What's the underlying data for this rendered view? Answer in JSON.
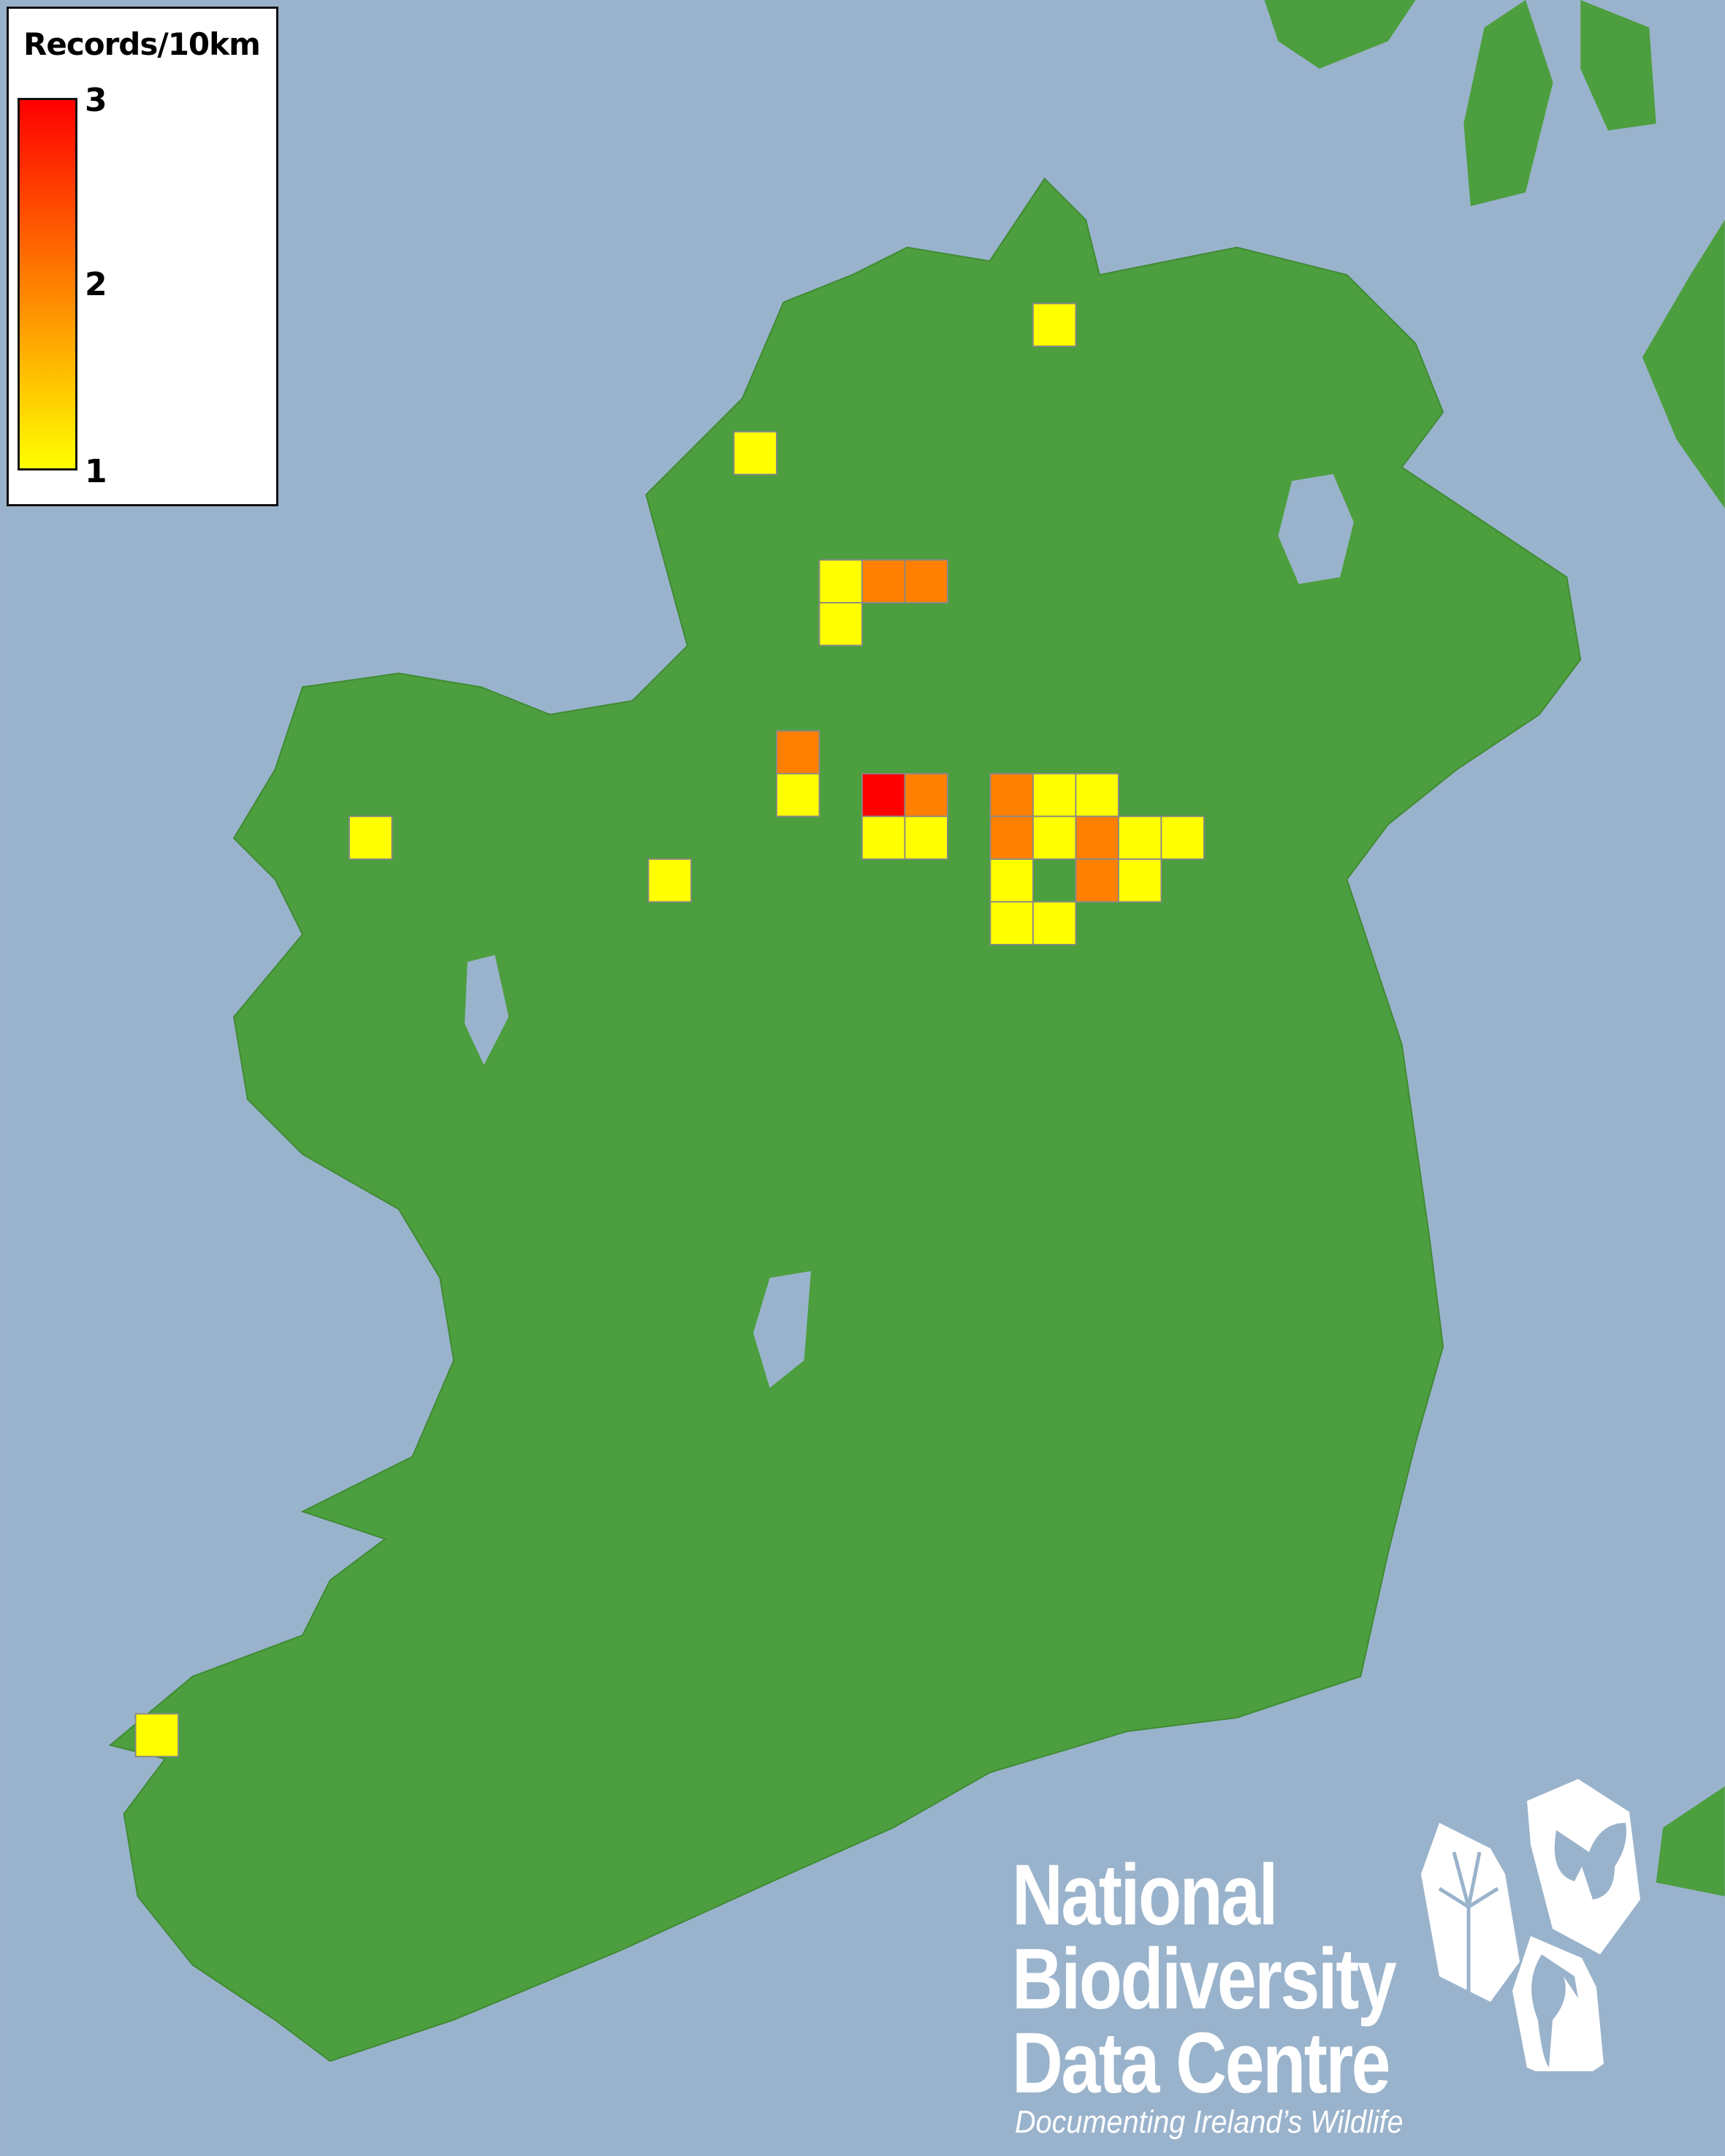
{
  "legend": {
    "title": "Records/10km",
    "ticks": [
      "3",
      "2",
      "1"
    ],
    "min": 1,
    "max": 3,
    "color_min": "#ffff00",
    "color_mid": "#ff8000",
    "color_max": "#ff0000"
  },
  "colors": {
    "sea": "#9ab3cc",
    "land": "#4c9e3e",
    "grid_outline": "#888888"
  },
  "records": [
    {
      "col": 6,
      "row": -6,
      "value": 1
    },
    {
      "col": -1,
      "row": -3,
      "value": 1
    },
    {
      "col": 1,
      "row": 0,
      "value": 1
    },
    {
      "col": 2,
      "row": 0,
      "value": 2
    },
    {
      "col": 3,
      "row": 0,
      "value": 2
    },
    {
      "col": 1,
      "row": 1,
      "value": 1
    },
    {
      "col": 0,
      "row": 4,
      "value": 2
    },
    {
      "col": 0,
      "row": 5,
      "value": 1
    },
    {
      "col": 2,
      "row": 5,
      "value": 3
    },
    {
      "col": 3,
      "row": 5,
      "value": 2
    },
    {
      "col": 2,
      "row": 6,
      "value": 1
    },
    {
      "col": 3,
      "row": 6,
      "value": 1
    },
    {
      "col": 5,
      "row": 5,
      "value": 2
    },
    {
      "col": 6,
      "row": 5,
      "value": 1
    },
    {
      "col": 7,
      "row": 5,
      "value": 1
    },
    {
      "col": 5,
      "row": 6,
      "value": 2
    },
    {
      "col": 6,
      "row": 6,
      "value": 1
    },
    {
      "col": 7,
      "row": 6,
      "value": 2
    },
    {
      "col": 8,
      "row": 6,
      "value": 1
    },
    {
      "col": 9,
      "row": 6,
      "value": 1
    },
    {
      "col": 5,
      "row": 7,
      "value": 1
    },
    {
      "col": 7,
      "row": 7,
      "value": 2
    },
    {
      "col": 8,
      "row": 7,
      "value": 1
    },
    {
      "col": 5,
      "row": 8,
      "value": 1
    },
    {
      "col": 6,
      "row": 8,
      "value": 1
    },
    {
      "col": -3,
      "row": 7,
      "value": 1
    },
    {
      "col": -10,
      "row": 6,
      "value": 1
    },
    {
      "col": -15,
      "row": 27,
      "value": 1
    }
  ],
  "logo": {
    "line1": "National",
    "line2": "Biodiversity",
    "line3": "Data Centre",
    "tagline": "Documenting Ireland’s Wildlife",
    "icons": [
      "tree-icon",
      "butterfly-icon",
      "seahorse-icon"
    ]
  }
}
